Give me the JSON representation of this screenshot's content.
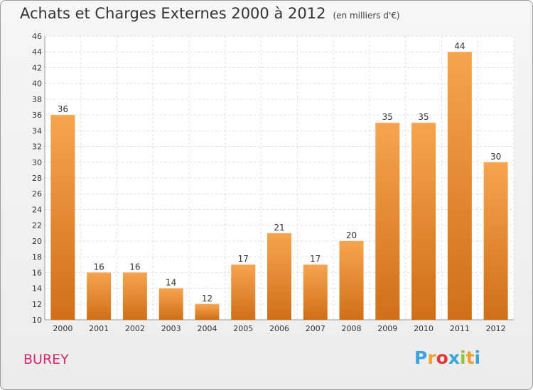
{
  "header": {
    "title": "Achats et Charges Externes 2000 à 2012",
    "unit": "(en milliers d'€)"
  },
  "footer": {
    "commune": "BUREY",
    "logo": {
      "letters": [
        "P",
        "r",
        "o",
        "x",
        "i",
        "t",
        "i"
      ],
      "colors": [
        "#3aa3dc",
        "#f0a030",
        "#e03a3a",
        "#3aa3dc",
        "#8cc63f",
        "#f0a030",
        "#3aa3dc"
      ]
    }
  },
  "colors": {
    "bar_top": "#f6a44e",
    "bar_bottom": "#d06f18",
    "commune": "#d02a6a"
  },
  "chart_data": {
    "type": "bar",
    "categories": [
      "2000",
      "2001",
      "2002",
      "2003",
      "2004",
      "2005",
      "2006",
      "2007",
      "2008",
      "2009",
      "2010",
      "2011",
      "2012"
    ],
    "values": [
      36,
      16,
      16,
      14,
      12,
      17,
      21,
      17,
      20,
      35,
      35,
      44,
      30
    ],
    "ylim": [
      10,
      46
    ],
    "yticks": [
      10,
      12,
      14,
      16,
      18,
      20,
      22,
      24,
      26,
      28,
      30,
      32,
      34,
      36,
      38,
      40,
      42,
      44,
      46
    ],
    "grid": true,
    "data_labels": true
  }
}
